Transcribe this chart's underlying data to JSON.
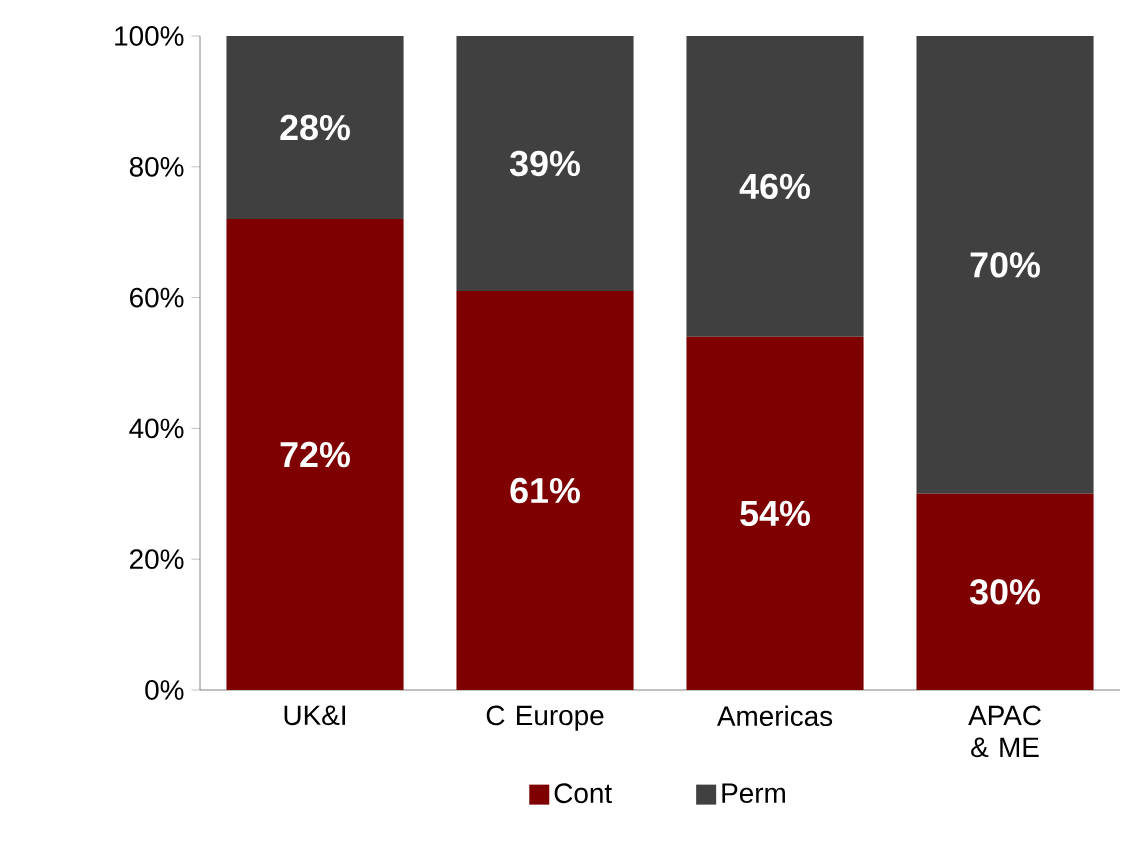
{
  "chart_data": {
    "type": "bar",
    "stacked": true,
    "categories": [
      "UK&I",
      "C Europe",
      "Americas",
      "APAC & ME"
    ],
    "series": [
      {
        "name": "Cont",
        "color": "#7f0000",
        "values": [
          72,
          61,
          54,
          30
        ],
        "value_labels": [
          "72%",
          "61%",
          "54%",
          "30%"
        ]
      },
      {
        "name": "Perm",
        "color": "#404040",
        "values": [
          28,
          39,
          46,
          70
        ],
        "value_labels": [
          "28%",
          "39%",
          "46%",
          "70%"
        ]
      }
    ],
    "ylim": [
      0,
      100
    ],
    "yticks": [
      {
        "value": 0,
        "label": "0%"
      },
      {
        "value": 20,
        "label": "20%"
      },
      {
        "value": 40,
        "label": "40%"
      },
      {
        "value": 60,
        "label": "60%"
      },
      {
        "value": 80,
        "label": "80%"
      },
      {
        "value": 100,
        "label": "100%"
      }
    ],
    "legend": "bottom",
    "grid": false
  }
}
